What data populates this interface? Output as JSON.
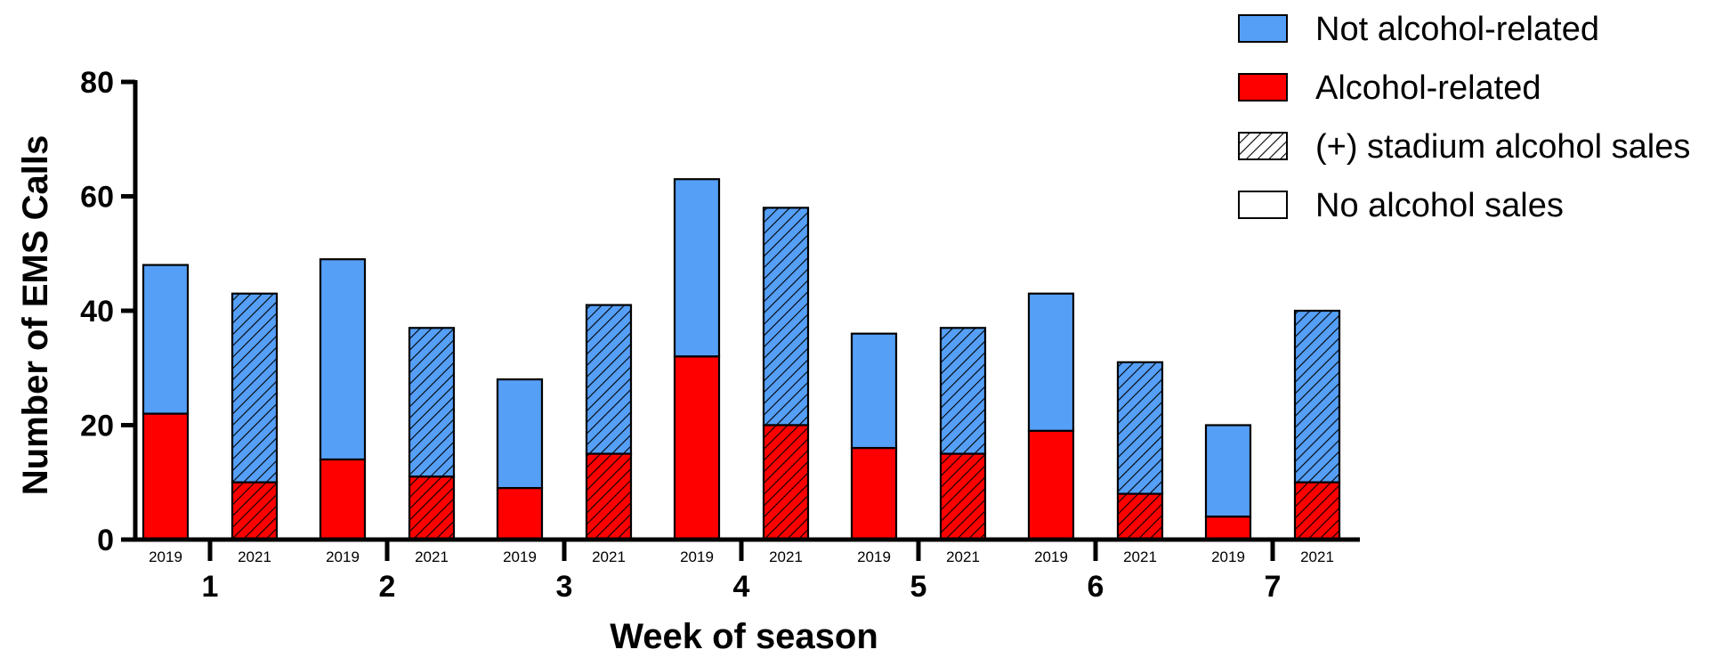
{
  "chart_data": {
    "type": "bar",
    "stacked": true,
    "title": "",
    "xlabel": "Week of season",
    "ylabel": "Number of EMS Calls",
    "ylim": [
      0,
      80
    ],
    "yticks": [
      "0",
      "20",
      "40",
      "60",
      "80"
    ],
    "grid": false,
    "categories": [
      "1",
      "2",
      "3",
      "4",
      "5",
      "6",
      "7"
    ],
    "group_labels": [
      "2019",
      "2021"
    ],
    "series": [
      {
        "name": "Not alcohol-related",
        "color": "#559ff7",
        "values_2019": [
          26,
          35,
          19,
          31,
          20,
          24,
          16
        ],
        "values_2021": [
          33,
          26,
          26,
          38,
          22,
          23,
          30
        ]
      },
      {
        "name": "Alcohol-related",
        "color": "#ff0000",
        "values_2019": [
          22,
          14,
          9,
          32,
          16,
          19,
          4
        ],
        "values_2021": [
          10,
          11,
          15,
          20,
          15,
          8,
          10
        ]
      }
    ],
    "totals_2019": [
      48,
      49,
      28,
      63,
      36,
      43,
      20
    ],
    "totals_2021": [
      43,
      37,
      41,
      58,
      37,
      31,
      40
    ],
    "hatched_group": "2021",
    "legend_position": "top-right"
  },
  "legend": {
    "items": [
      {
        "label": "Not alcohol-related",
        "fill": "#559ff7",
        "pattern": "solid"
      },
      {
        "label": "Alcohol-related",
        "fill": "#ff0000",
        "pattern": "solid"
      },
      {
        "label": "(+) stadium alcohol sales",
        "fill": "#ffffff",
        "pattern": "hatch"
      },
      {
        "label": "No alcohol sales",
        "fill": "#ffffff",
        "pattern": "solid"
      }
    ]
  }
}
